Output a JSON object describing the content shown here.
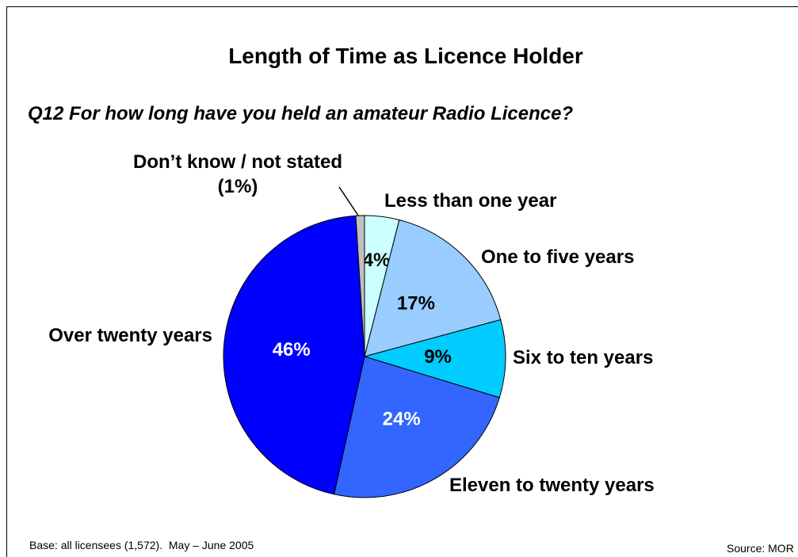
{
  "chart_data": {
    "type": "pie",
    "title": "Length of Time as Licence Holder",
    "subtitle": "Q12  For how long have you held an amateur Radio Licence?",
    "categories": [
      "Less than one year",
      "One to five years",
      "Six to ten years",
      "Eleven to twenty years",
      "Over twenty years",
      "Don’t know / not stated (1%)"
    ],
    "values": [
      4,
      17,
      9,
      24,
      46,
      1
    ],
    "value_labels": [
      "4%",
      "17%",
      "9%",
      "24%",
      "46%",
      null
    ],
    "colors": [
      "#ccffff",
      "#99ccff",
      "#00ccff",
      "#3366ff",
      "#0000ff",
      "#c0c0c0"
    ],
    "footnote": "Base: all licensees (1,572).  May – June 2005",
    "source": "Source: MOR"
  }
}
